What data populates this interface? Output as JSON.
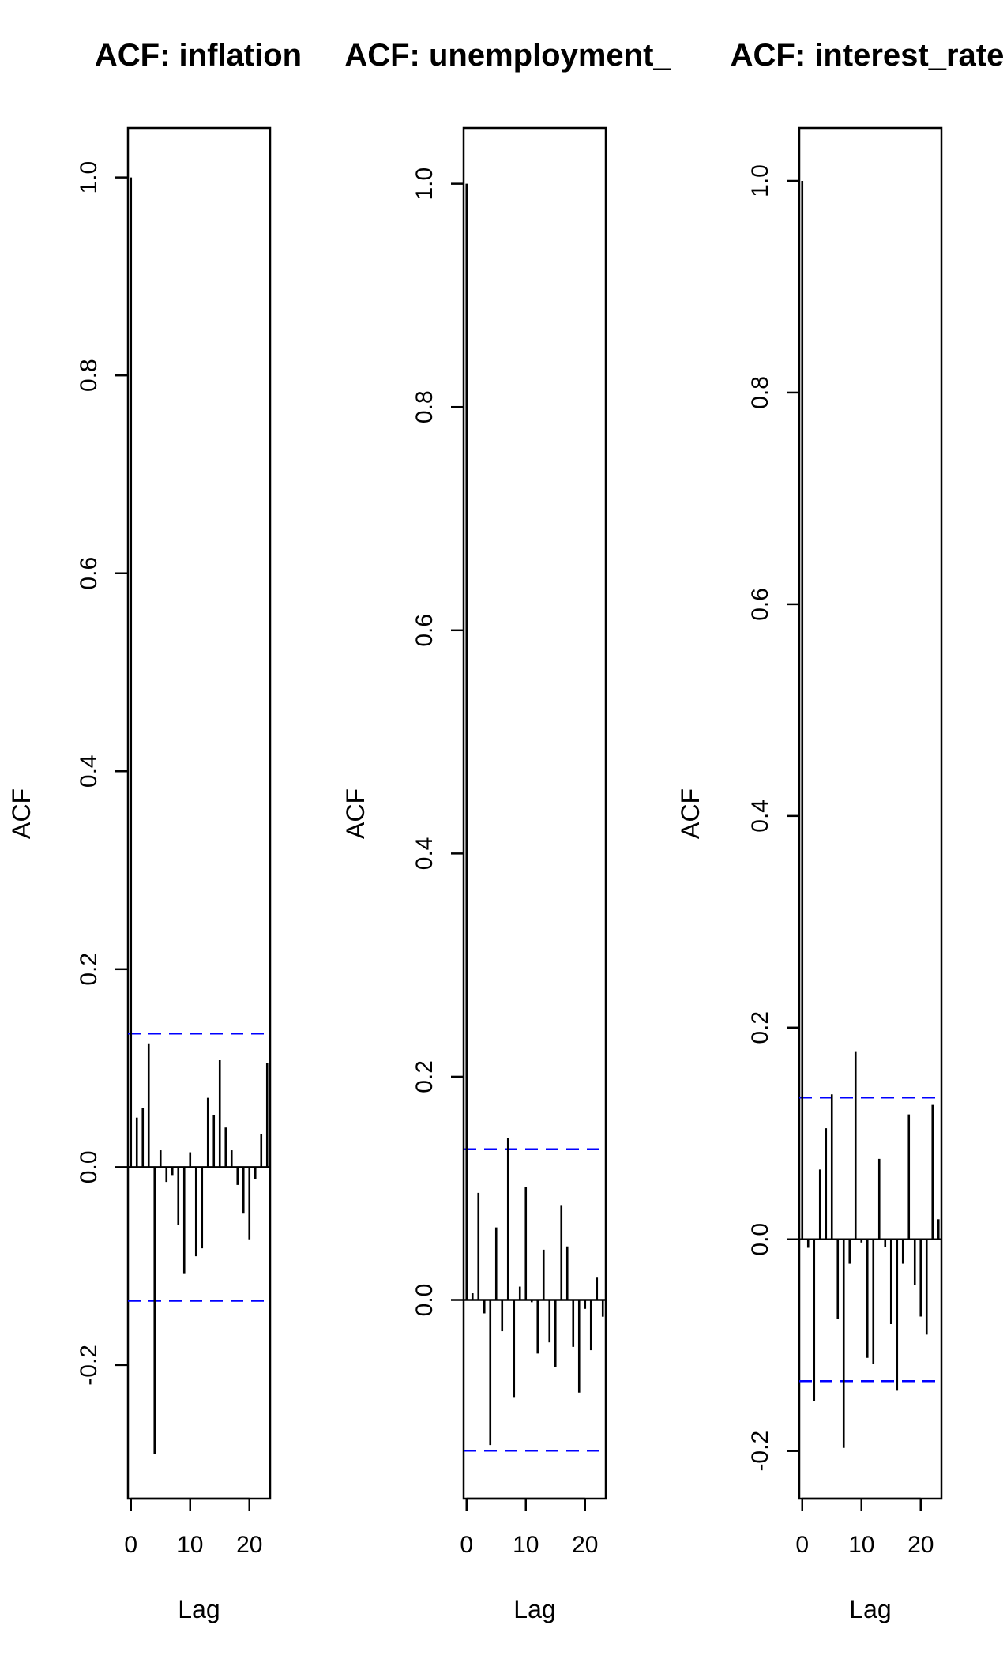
{
  "chart_data": [
    {
      "type": "bar",
      "subtype": "acf-lollipop",
      "title": "ACF: inflation",
      "xlabel": "Lag",
      "ylabel": "ACF",
      "xlim": [
        -0.5,
        23.5
      ],
      "ylim": [
        -0.335,
        1.05
      ],
      "xticks": [
        0,
        10,
        20
      ],
      "yticks": [
        -0.2,
        0.0,
        0.2,
        0.4,
        0.6,
        0.8,
        1.0
      ],
      "ytick_labels": [
        "-0.2",
        "0.0",
        "0.2",
        "0.4",
        "0.6",
        "0.8",
        "1.0"
      ],
      "ci": 0.135,
      "colors": {
        "ci": "#0000ff",
        "bars": "#000000"
      },
      "lags": [
        0,
        1,
        2,
        3,
        4,
        5,
        6,
        7,
        8,
        9,
        10,
        11,
        12,
        13,
        14,
        15,
        16,
        17,
        18,
        19,
        20,
        21,
        22,
        23
      ],
      "values": [
        1.0,
        0.05,
        0.06,
        0.125,
        -0.29,
        0.017,
        -0.015,
        -0.008,
        -0.058,
        -0.108,
        0.015,
        -0.09,
        -0.082,
        0.07,
        0.053,
        0.108,
        0.04,
        0.017,
        -0.018,
        -0.047,
        -0.073,
        -0.012,
        0.033,
        0.105
      ]
    },
    {
      "type": "bar",
      "subtype": "acf-lollipop",
      "title": "ACF: unemployment_",
      "xlabel": "Lag",
      "ylabel": "ACF",
      "xlim": [
        -0.5,
        23.5
      ],
      "ylim": [
        -0.178,
        1.05
      ],
      "xticks": [
        0,
        10,
        20
      ],
      "yticks": [
        0.0,
        0.2,
        0.4,
        0.6,
        0.8,
        1.0
      ],
      "ytick_labels": [
        "0.0",
        "0.2",
        "0.4",
        "0.6",
        "0.8",
        "1.0"
      ],
      "ci": 0.135,
      "colors": {
        "ci": "#0000ff",
        "bars": "#000000"
      },
      "lags": [
        0,
        1,
        2,
        3,
        4,
        5,
        6,
        7,
        8,
        9,
        10,
        11,
        12,
        13,
        14,
        15,
        16,
        17,
        18,
        19,
        20,
        21,
        22,
        23
      ],
      "values": [
        1.0,
        0.006,
        0.096,
        -0.012,
        -0.13,
        0.065,
        -0.028,
        0.145,
        -0.087,
        0.012,
        0.101,
        -0.002,
        -0.048,
        0.045,
        -0.038,
        -0.06,
        0.085,
        0.048,
        -0.042,
        -0.083,
        -0.008,
        -0.045,
        0.02,
        -0.015
      ]
    },
    {
      "type": "bar",
      "subtype": "acf-lollipop",
      "title": "ACF: interest_rate",
      "xlabel": "Lag",
      "ylabel": "ACF",
      "xlim": [
        -0.5,
        23.5
      ],
      "ylim": [
        -0.245,
        1.05
      ],
      "xticks": [
        0,
        10,
        20
      ],
      "yticks": [
        -0.2,
        0.0,
        0.2,
        0.4,
        0.6,
        0.8,
        1.0
      ],
      "ytick_labels": [
        "-0.2",
        "0.0",
        "0.2",
        "0.4",
        "0.6",
        "0.8",
        "1.0"
      ],
      "ci": 0.134,
      "colors": {
        "ci": "#0000ff",
        "bars": "#000000"
      },
      "lags": [
        0,
        1,
        2,
        3,
        4,
        5,
        6,
        7,
        8,
        9,
        10,
        11,
        12,
        13,
        14,
        15,
        16,
        17,
        18,
        19,
        20,
        21,
        22,
        23
      ],
      "values": [
        1.0,
        -0.008,
        -0.153,
        0.066,
        0.105,
        0.137,
        -0.075,
        -0.197,
        -0.023,
        0.177,
        -0.003,
        -0.112,
        -0.118,
        0.076,
        -0.007,
        -0.08,
        -0.143,
        -0.023,
        0.118,
        -0.043,
        -0.073,
        -0.09,
        0.127,
        0.019
      ]
    }
  ]
}
